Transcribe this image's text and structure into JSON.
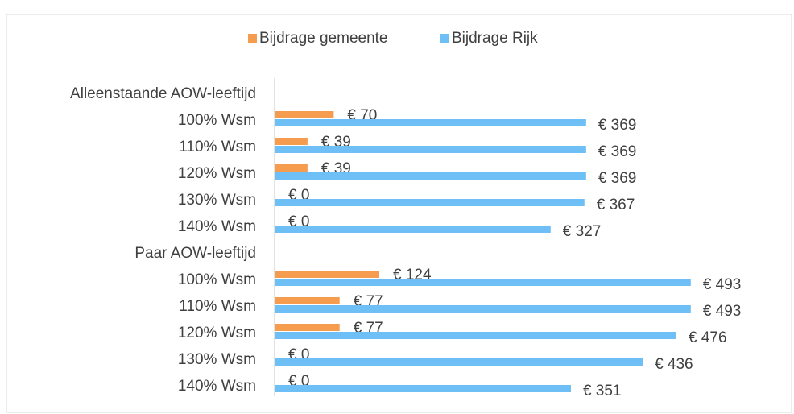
{
  "chart_data": {
    "type": "hbar",
    "categories": [
      "Alleenstaande AOW-leeftijd",
      "100% Wsm",
      "110% Wsm",
      "120% Wsm",
      "130% Wsm",
      "140% Wsm",
      "Paar AOW-leeftijd",
      "100% Wsm",
      "110% Wsm",
      "120% Wsm",
      "130% Wsm",
      "140% Wsm"
    ],
    "series": [
      {
        "name": "Bijdrage gemeente",
        "color": "#f69c4f",
        "values": [
          null,
          70,
          39,
          39,
          0,
          0,
          null,
          124,
          77,
          77,
          0,
          0
        ],
        "value_labels": [
          null,
          "€ 70",
          "€ 39",
          "€ 39",
          "€ 0",
          "€ 0",
          null,
          "€ 124",
          "€ 77",
          "€ 77",
          "€ 0",
          "€ 0"
        ]
      },
      {
        "name": "Bijdrage Rijk",
        "color": "#6dbff5",
        "values": [
          null,
          369,
          369,
          369,
          367,
          327,
          null,
          493,
          493,
          476,
          436,
          351
        ],
        "value_labels": [
          null,
          "€ 369",
          "€ 369",
          "€ 369",
          "€ 367",
          "€ 327",
          null,
          "€ 493",
          "€ 493",
          "€ 476",
          "€ 436",
          "€ 351"
        ]
      }
    ],
    "xlim": [
      0,
      600
    ],
    "legend": "top"
  }
}
